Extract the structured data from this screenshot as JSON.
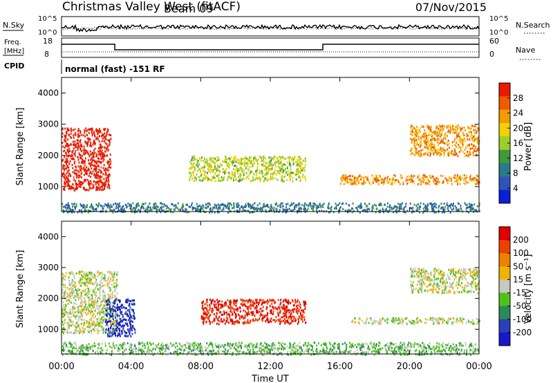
{
  "header": {
    "station": "Christmas Valley West (fitACF)",
    "beam": "Beam 09",
    "date": "07/Nov/2015"
  },
  "top_panels": {
    "nsky_label": "N.Sky",
    "nsearch_label": "N.Search",
    "noise_tick_hi": "10^5",
    "noise_tick_lo": "10^0",
    "freq_label_1": "Freq.",
    "freq_label_2": "[MHz]",
    "freq_ticks": [
      "18",
      "8"
    ],
    "nave_label": "Nave",
    "nave_ticks": [
      "60",
      "0"
    ],
    "cpid_label": "CPID",
    "cpid_text": "normal (fast) -151 RF"
  },
  "colors": {
    "power": [
      "#0a1fd8",
      "#2f55b4",
      "#2a7a8a",
      "#3e9a3c",
      "#9ccf2a",
      "#f2d00a",
      "#f59a00",
      "#f05a00",
      "#e81a00"
    ],
    "velocity": [
      "#1818c8",
      "#2840b8",
      "#2a8a5a",
      "#4ec21a",
      "#c8c8c0",
      "#f0b400",
      "#f08000",
      "#f04000",
      "#e00000"
    ]
  },
  "chart_data": [
    {
      "type": "heatmap",
      "name": "power",
      "ylabel": "Slant Range [km]",
      "y_ticks": [
        "4000",
        "3000",
        "2000",
        "1000"
      ],
      "ylim": [
        200,
        4500
      ],
      "colorbar_label": "Power [dB]",
      "colorbar_ticks": [
        "28",
        "24",
        "20",
        "16",
        "12",
        "8",
        "4"
      ],
      "colorbar_range": [
        0,
        30
      ],
      "x_ticks": [
        "00:00",
        "04:00",
        "08:00",
        "12:00",
        "16:00",
        "20:00",
        "00:00"
      ],
      "features": [
        {
          "x": [
            0.0,
            2.8
          ],
          "y": [
            900,
            2900
          ],
          "value": 30
        },
        {
          "x": [
            7.3,
            14.0
          ],
          "y": [
            1200,
            2000
          ],
          "value": 16
        },
        {
          "x": [
            16.0,
            24.0
          ],
          "y": [
            1100,
            1400
          ],
          "value": 22
        },
        {
          "x": [
            20.0,
            24.0
          ],
          "y": [
            2000,
            3000
          ],
          "value": 22
        },
        {
          "x": [
            0.0,
            24.0
          ],
          "y": [
            200,
            500
          ],
          "value": 8
        }
      ]
    },
    {
      "type": "heatmap",
      "name": "velocity",
      "ylabel": "Slant Range [km]",
      "xlabel": "Time UT",
      "y_ticks": [
        "4000",
        "3000",
        "2000",
        "1000"
      ],
      "ylim": [
        200,
        4500
      ],
      "colorbar_label": "Velocity [m s⁻¹]",
      "colorbar_ticks": [
        "200",
        "100",
        "50",
        "15",
        "-15",
        "-50",
        "-100",
        "-200"
      ],
      "colorbar_range": [
        -250,
        250
      ],
      "x_ticks": [
        "00:00",
        "04:00",
        "08:00",
        "12:00",
        "16:00",
        "20:00",
        "00:00"
      ],
      "features": [
        {
          "x": [
            0.0,
            3.2
          ],
          "y": [
            900,
            2900
          ],
          "value": 0
        },
        {
          "x": [
            2.5,
            4.2
          ],
          "y": [
            800,
            2000
          ],
          "value": -200
        },
        {
          "x": [
            8.0,
            14.0
          ],
          "y": [
            1200,
            2000
          ],
          "value": 200
        },
        {
          "x": [
            16.5,
            24.0
          ],
          "y": [
            1200,
            1400
          ],
          "value": 0
        },
        {
          "x": [
            20.0,
            24.0
          ],
          "y": [
            2200,
            3000
          ],
          "value": 0
        },
        {
          "x": [
            0.0,
            24.0
          ],
          "y": [
            200,
            600
          ],
          "value": -50
        }
      ]
    }
  ]
}
